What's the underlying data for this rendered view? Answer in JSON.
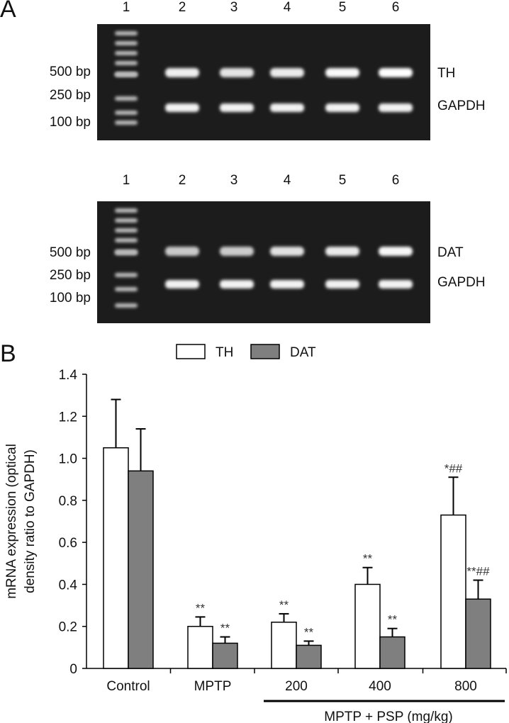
{
  "panel_a": {
    "letter": "A",
    "gels": [
      {
        "lanes": [
          "1",
          "2",
          "3",
          "4",
          "5",
          "6"
        ],
        "size_markers": [
          "500 bp",
          "250 bp",
          "100 bp"
        ],
        "band_labels": [
          "TH",
          "GAPDH"
        ],
        "target_intensity": [
          0.88,
          0.8,
          0.85,
          0.95,
          1.0
        ],
        "gapdh_intensity": [
          0.9,
          0.9,
          0.9,
          0.9,
          0.9
        ]
      },
      {
        "lanes": [
          "1",
          "2",
          "3",
          "4",
          "5",
          "6"
        ],
        "size_markers": [
          "500 bp",
          "250 bp",
          "100 bp"
        ],
        "band_labels": [
          "DAT",
          "GAPDH"
        ],
        "target_intensity": [
          0.6,
          0.62,
          0.78,
          0.85,
          0.95
        ],
        "gapdh_intensity": [
          0.9,
          0.9,
          0.9,
          0.9,
          0.9
        ]
      }
    ]
  },
  "panel_b": {
    "letter": "B",
    "group_bracket_label": "MPTP + PSP (mg/kg)"
  },
  "chart_data": {
    "type": "bar",
    "categories": [
      "Control",
      "MPTP",
      "200",
      "400",
      "800"
    ],
    "series": [
      {
        "name": "TH",
        "color": "#ffffff",
        "values": [
          1.05,
          0.2,
          0.22,
          0.4,
          0.73
        ],
        "errors": [
          0.23,
          0.045,
          0.04,
          0.08,
          0.18
        ],
        "annotations": [
          "",
          "**",
          "**",
          "**",
          "*##"
        ]
      },
      {
        "name": "DAT",
        "color": "#7f7f7f",
        "values": [
          0.94,
          0.12,
          0.11,
          0.15,
          0.33
        ],
        "errors": [
          0.2,
          0.03,
          0.02,
          0.04,
          0.09
        ],
        "annotations": [
          "",
          "**",
          "**",
          "**",
          "**##"
        ]
      }
    ],
    "ylabel": "mRNA expression (optical density ratio to GAPDH)",
    "ylabel_lines": [
      "mRNA expression (optical",
      "density ratio to GAPDH)"
    ],
    "ylim": [
      0,
      1.4
    ],
    "yticks": [
      "0",
      "0.2",
      "0.4",
      "0.6",
      "0.8",
      "1.0",
      "1.2",
      "1.4"
    ],
    "legend_placement": "top-center",
    "grid": false
  }
}
